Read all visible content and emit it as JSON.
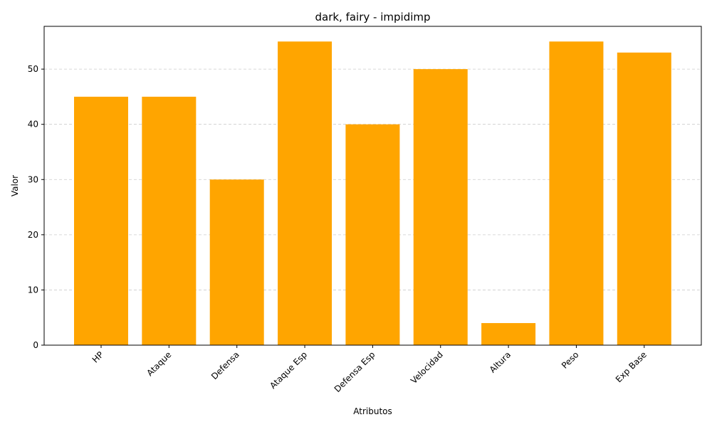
{
  "chart_data": {
    "type": "bar",
    "title": "dark, fairy - impidimp",
    "xlabel": "Atributos",
    "ylabel": "Valor",
    "categories": [
      "HP",
      "Ataque",
      "Defensa",
      "Ataque Esp",
      "Defensa Esp",
      "Velocidad",
      "Altura",
      "Peso",
      "Exp Base"
    ],
    "values": [
      45,
      45,
      30,
      55,
      40,
      50,
      4,
      55,
      53
    ],
    "ylim": [
      0,
      57.75
    ],
    "yticks": [
      0,
      10,
      20,
      30,
      40,
      50
    ],
    "grid": "y-dashed",
    "bar_color": "#ffa500",
    "x_tick_rotation_deg": 45
  }
}
